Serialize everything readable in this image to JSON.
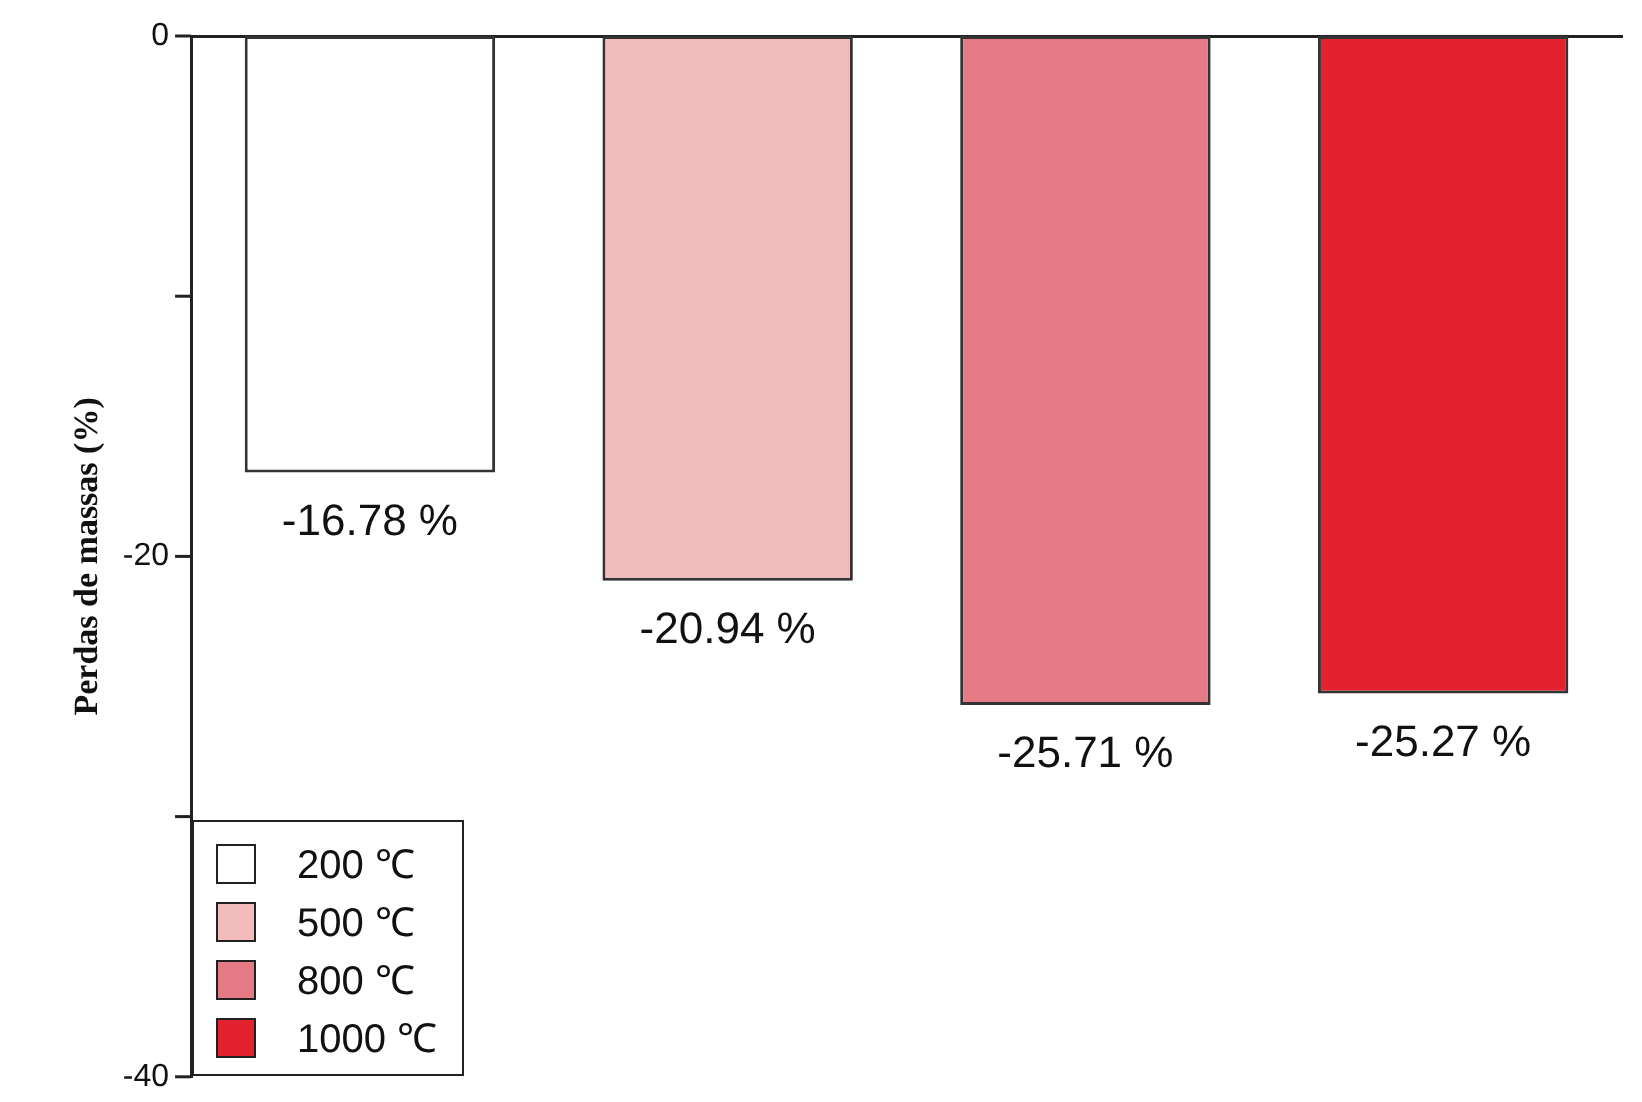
{
  "chart_data": {
    "type": "bar",
    "ylabel": "Perdas de massas (%)",
    "categories": [
      null,
      null,
      null,
      null
    ],
    "series": [
      {
        "name": "200 ℃",
        "color": "#ffffff",
        "values": [
          -16.78,
          null,
          null,
          null
        ],
        "value_labels": [
          "-16.78 %",
          null,
          null,
          null
        ]
      },
      {
        "name": "500 ℃",
        "color": "#f2bcbc",
        "values": [
          null,
          -20.94,
          null,
          null
        ],
        "value_labels": [
          null,
          "-20.94 %",
          null,
          null
        ]
      },
      {
        "name": "800 ℃",
        "color": "#e57b86",
        "values": [
          null,
          null,
          -25.71,
          null
        ],
        "value_labels": [
          null,
          null,
          "-25.71 %",
          null
        ]
      },
      {
        "name": "1000 ℃",
        "color": "#e3212f",
        "values": [
          null,
          null,
          null,
          -25.27
        ],
        "value_labels": [
          null,
          null,
          null,
          "-25.27 %"
        ]
      }
    ],
    "ylim": [
      -40,
      0
    ],
    "yticks": [
      0,
      {
        "value": -10,
        "label": null
      },
      -20,
      {
        "value": -30,
        "label": null
      },
      -40
    ],
    "tick_labels": "y",
    "grid": false,
    "legend": "bottom left"
  }
}
